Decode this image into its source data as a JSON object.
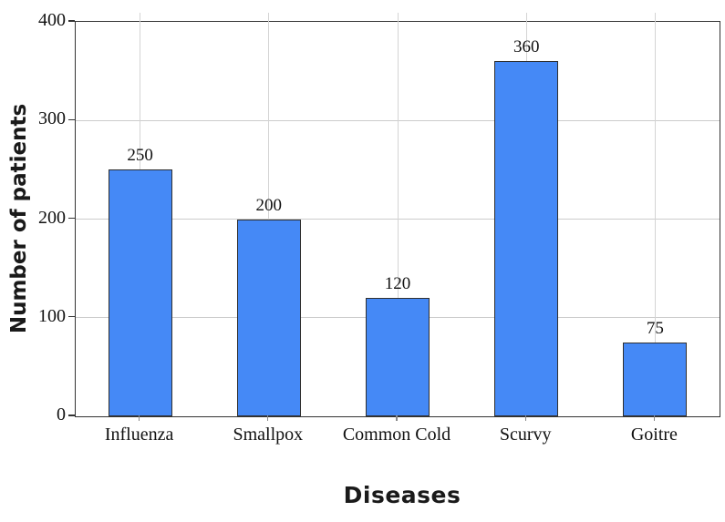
{
  "chart_data": {
    "type": "bar",
    "title": "",
    "xlabel": "Diseases",
    "ylabel": "Number of patients",
    "categories": [
      "Influenza",
      "Smallpox",
      "Common Cold",
      "Scurvy",
      "Goitre"
    ],
    "values": [
      250,
      200,
      120,
      360,
      75
    ],
    "data_labels": [
      "250",
      "200",
      "120",
      "360",
      "75"
    ],
    "ylim": [
      0,
      400
    ],
    "yticks": [
      0,
      100,
      200,
      300,
      400
    ],
    "grid": "on",
    "legend_position": "none",
    "colors": {
      "bar_fill": "#4589f6",
      "bar_border": "#2f2f2f",
      "gridline": "#cccccc",
      "frame": "#333333",
      "text": "#111111"
    }
  }
}
